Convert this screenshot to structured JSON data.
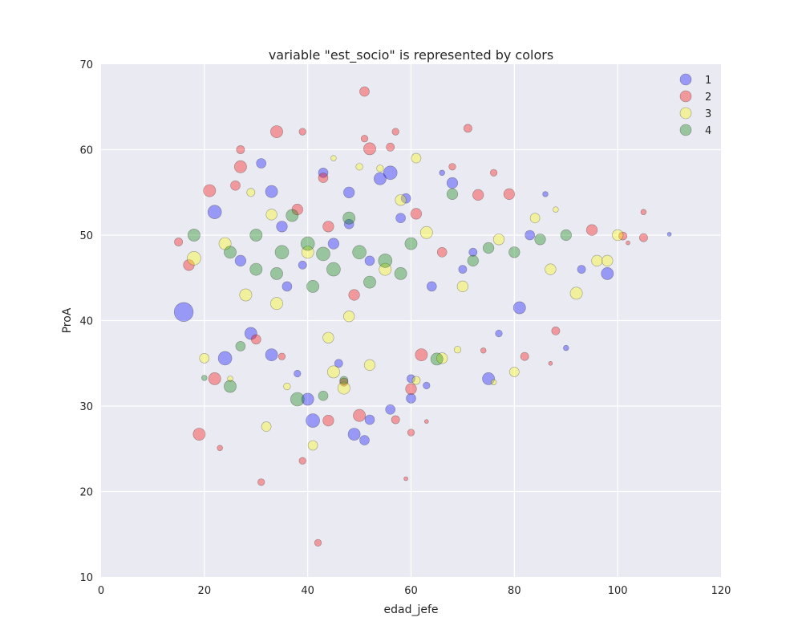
{
  "chart_data": {
    "type": "scatter",
    "title": "variable \"est_socio\" is represented by colors",
    "xlabel": "edad_jefe",
    "ylabel": "ProA",
    "xlim": [
      0,
      120
    ],
    "ylim": [
      10,
      70
    ],
    "xticks": [
      "0",
      "20",
      "40",
      "60",
      "80",
      "100",
      "120"
    ],
    "yticks": [
      "10",
      "20",
      "30",
      "40",
      "50",
      "60",
      "70"
    ],
    "grid": true,
    "legend_position": "top-right",
    "background_color": "#eaeaf2",
    "series": [
      {
        "name": "1",
        "color": "#0000ff",
        "points": [
          [
            16,
            41,
            14
          ],
          [
            22,
            52.7,
            10
          ],
          [
            24,
            35.6,
            10
          ],
          [
            29,
            38.5,
            9
          ],
          [
            31,
            58.4,
            7
          ],
          [
            33,
            55.1,
            9
          ],
          [
            33,
            36,
            9
          ],
          [
            36,
            44,
            7
          ],
          [
            38,
            33.8,
            5
          ],
          [
            40,
            30.8,
            9
          ],
          [
            41,
            28.3,
            10
          ],
          [
            43,
            57.3,
            7
          ],
          [
            46,
            35,
            6
          ],
          [
            48,
            55,
            8
          ],
          [
            49,
            26.7,
            9
          ],
          [
            51,
            26,
            7
          ],
          [
            52,
            28.4,
            7
          ],
          [
            54,
            56.6,
            9
          ],
          [
            56,
            57.3,
            10
          ],
          [
            56,
            29.6,
            7
          ],
          [
            59,
            54.3,
            7
          ],
          [
            60,
            30.9,
            7
          ],
          [
            60,
            33.2,
            6
          ],
          [
            63,
            32.4,
            5
          ],
          [
            66,
            57.3,
            4
          ],
          [
            68,
            56.1,
            8
          ],
          [
            70,
            46,
            6
          ],
          [
            75,
            33.2,
            9
          ],
          [
            77,
            38.5,
            5
          ],
          [
            81,
            41.5,
            9
          ],
          [
            86,
            54.8,
            4
          ],
          [
            90,
            36.8,
            4
          ],
          [
            93,
            46,
            6
          ],
          [
            98,
            45.5,
            9
          ],
          [
            110,
            50.1,
            3
          ],
          [
            45,
            49,
            8
          ],
          [
            52,
            47,
            7
          ],
          [
            58,
            52,
            7
          ],
          [
            35,
            51,
            8
          ],
          [
            64,
            44,
            7
          ],
          [
            27,
            47,
            8
          ],
          [
            72,
            48,
            6
          ],
          [
            83,
            50,
            7
          ],
          [
            39,
            46.5,
            6
          ],
          [
            48,
            51.3,
            7
          ]
        ]
      },
      {
        "name": "2",
        "color": "#ff0000",
        "points": [
          [
            19,
            26.7,
            9
          ],
          [
            22,
            33.2,
            9
          ],
          [
            23,
            25.1,
            4
          ],
          [
            27,
            60,
            6
          ],
          [
            27,
            58,
            9
          ],
          [
            31,
            21.1,
            5
          ],
          [
            34,
            62.1,
            9
          ],
          [
            35,
            35.8,
            5
          ],
          [
            39,
            62.1,
            5
          ],
          [
            39,
            23.6,
            5
          ],
          [
            42,
            14,
            5
          ],
          [
            43,
            56.7,
            7
          ],
          [
            44,
            28.3,
            8
          ],
          [
            47,
            32.8,
            6
          ],
          [
            50,
            28.9,
            9
          ],
          [
            51,
            66.8,
            7
          ],
          [
            51,
            61.3,
            5
          ],
          [
            52,
            60.1,
            9
          ],
          [
            57,
            62.1,
            5
          ],
          [
            56,
            60.3,
            6
          ],
          [
            57,
            28.4,
            6
          ],
          [
            59,
            21.5,
            3
          ],
          [
            60,
            26.9,
            5
          ],
          [
            60,
            32,
            8
          ],
          [
            62,
            36,
            9
          ],
          [
            63,
            28.2,
            3
          ],
          [
            68,
            58,
            5
          ],
          [
            71,
            62.5,
            6
          ],
          [
            73,
            54.7,
            8
          ],
          [
            74,
            36.5,
            4
          ],
          [
            76,
            57.3,
            5
          ],
          [
            79,
            54.8,
            8
          ],
          [
            82,
            35.8,
            6
          ],
          [
            88,
            38.8,
            6
          ],
          [
            87,
            35,
            3
          ],
          [
            95,
            50.6,
            8
          ],
          [
            101,
            49.9,
            6
          ],
          [
            102,
            49.1,
            3
          ],
          [
            105,
            49.7,
            6
          ],
          [
            105,
            52.7,
            4
          ],
          [
            15,
            49.2,
            6
          ],
          [
            17,
            46.5,
            8
          ],
          [
            21,
            55.2,
            9
          ],
          [
            26,
            55.8,
            7
          ],
          [
            30,
            37.8,
            7
          ],
          [
            44,
            51,
            8
          ],
          [
            61,
            52.5,
            8
          ],
          [
            49,
            43,
            8
          ],
          [
            66,
            48,
            7
          ],
          [
            38,
            53,
            8
          ]
        ]
      },
      {
        "name": "3",
        "color": "#ffff00",
        "points": [
          [
            18,
            47.3,
            10
          ],
          [
            20,
            35.6,
            7
          ],
          [
            25,
            33.2,
            4
          ],
          [
            29,
            55,
            6
          ],
          [
            32,
            27.6,
            7
          ],
          [
            34,
            42,
            9
          ],
          [
            36,
            32.3,
            5
          ],
          [
            41,
            25.4,
            7
          ],
          [
            44,
            38,
            8
          ],
          [
            45,
            34,
            9
          ],
          [
            45,
            59,
            4
          ],
          [
            47,
            32.1,
            9
          ],
          [
            50,
            58,
            5
          ],
          [
            52,
            34.8,
            8
          ],
          [
            54,
            57.8,
            5
          ],
          [
            58,
            54.1,
            8
          ],
          [
            61,
            59,
            7
          ],
          [
            61,
            33,
            6
          ],
          [
            66,
            35.6,
            8
          ],
          [
            69,
            36.6,
            5
          ],
          [
            76,
            32.8,
            4
          ],
          [
            80,
            34,
            7
          ],
          [
            84,
            52,
            7
          ],
          [
            88,
            53,
            4
          ],
          [
            92,
            43.2,
            9
          ],
          [
            96,
            47,
            8
          ],
          [
            100,
            50,
            8
          ],
          [
            98,
            47,
            8
          ],
          [
            24,
            49,
            9
          ],
          [
            40,
            48,
            9
          ],
          [
            55,
            46,
            9
          ],
          [
            70,
            44,
            8
          ],
          [
            33,
            52.4,
            8
          ],
          [
            63,
            50.3,
            9
          ],
          [
            48,
            40.5,
            8
          ],
          [
            77,
            49.5,
            8
          ],
          [
            28,
            43,
            9
          ],
          [
            87,
            46,
            8
          ]
        ]
      },
      {
        "name": "4",
        "color": "#008000",
        "points": [
          [
            18,
            50,
            9
          ],
          [
            20,
            33.3,
            4
          ],
          [
            25,
            32.3,
            9
          ],
          [
            27,
            37,
            7
          ],
          [
            30,
            46,
            9
          ],
          [
            34,
            45.5,
            9
          ],
          [
            38,
            30.8,
            10
          ],
          [
            41,
            44,
            9
          ],
          [
            43,
            31.2,
            7
          ],
          [
            47,
            33,
            6
          ],
          [
            65,
            35.5,
            9
          ],
          [
            68,
            54.8,
            8
          ],
          [
            72,
            47,
            8
          ],
          [
            75,
            48.5,
            8
          ],
          [
            80,
            48,
            8
          ],
          [
            85,
            49.5,
            8
          ],
          [
            90,
            50,
            8
          ],
          [
            45,
            46,
            10
          ],
          [
            50,
            48,
            10
          ],
          [
            55,
            47,
            10
          ],
          [
            60,
            49,
            9
          ],
          [
            40,
            49,
            10
          ],
          [
            35,
            48,
            10
          ],
          [
            25,
            48,
            9
          ],
          [
            30,
            50,
            9
          ],
          [
            52,
            44.5,
            9
          ],
          [
            58,
            45.5,
            9
          ],
          [
            43,
            47.8,
            10
          ],
          [
            48,
            52,
            9
          ],
          [
            37,
            52.3,
            9
          ]
        ]
      }
    ]
  }
}
